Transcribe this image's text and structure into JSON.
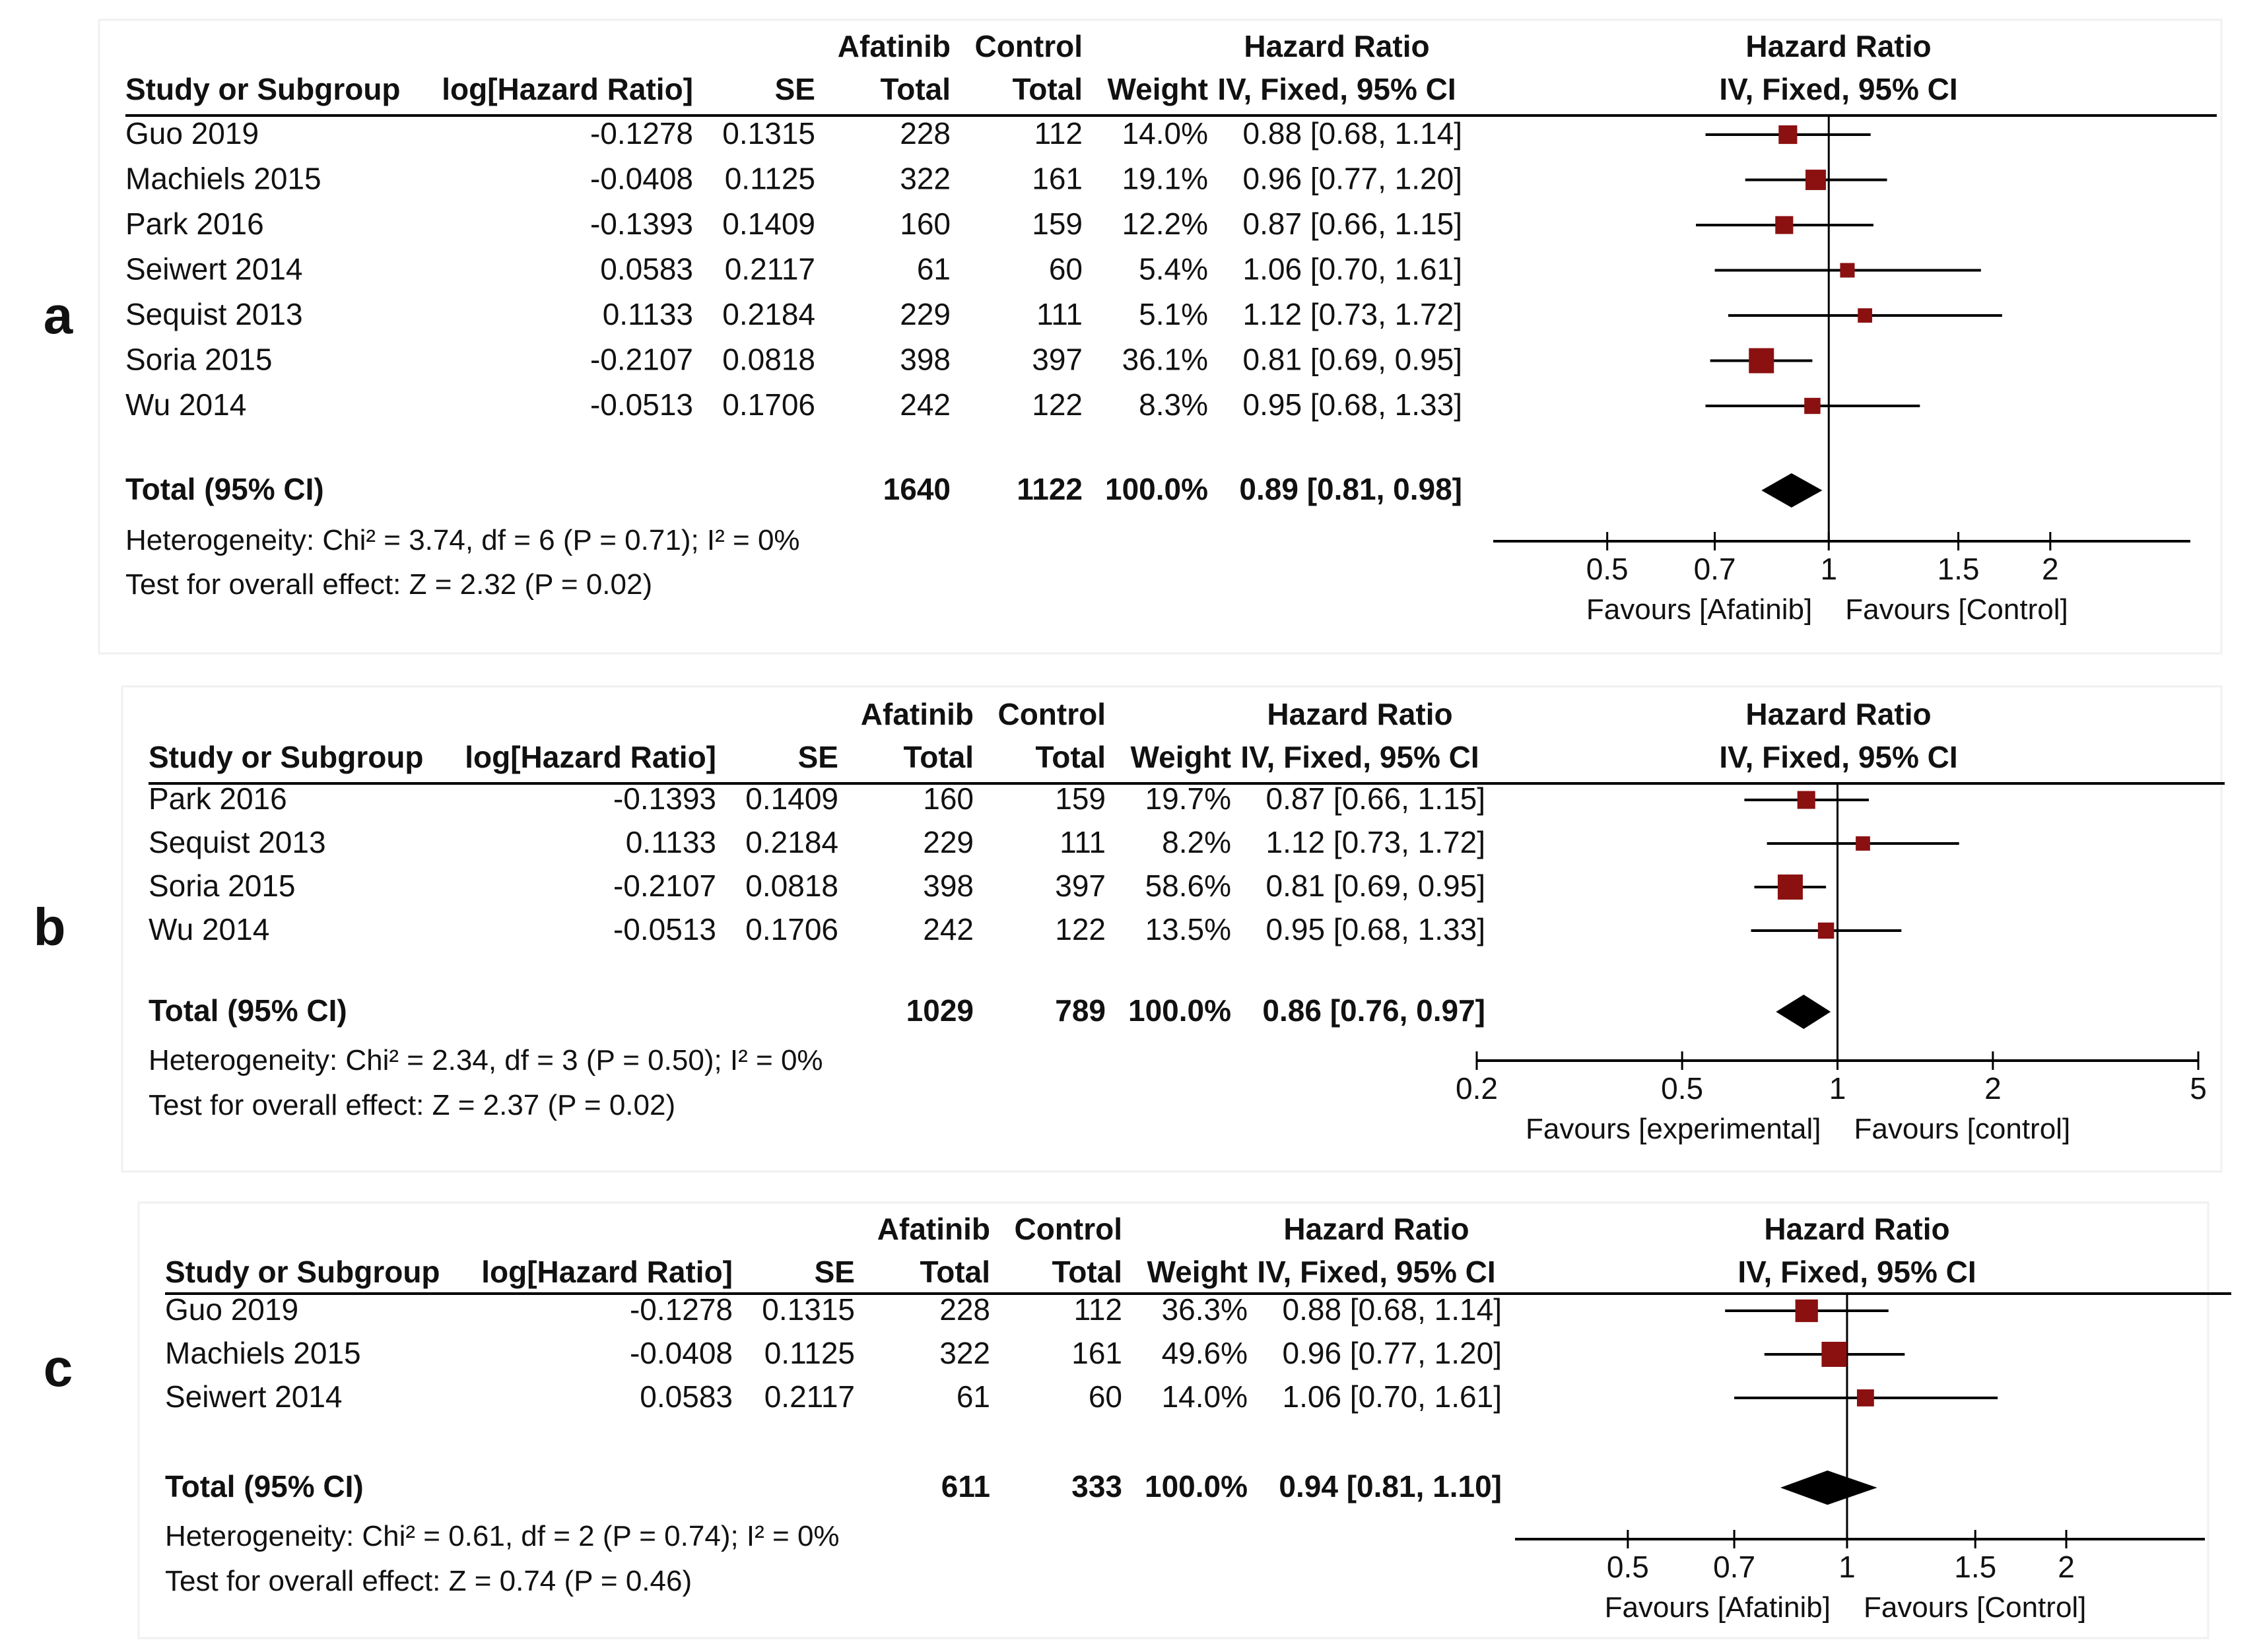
{
  "chart_data": [
    {
      "type": "forest",
      "panel_label": "a",
      "header": {
        "group1": "Afatinib",
        "group2": "Control",
        "col_study": "Study or Subgroup",
        "col_log": "log[Hazard Ratio]",
        "col_se": "SE",
        "col_total1": "Total",
        "col_total2": "Total",
        "col_weight": "Weight",
        "col_hr_title": "Hazard Ratio",
        "col_hr_method": "IV, Fixed, 95% CI",
        "plot_title": "Hazard Ratio",
        "plot_method": "IV, Fixed, 95% CI"
      },
      "studies": [
        {
          "name": "Guo 2019",
          "log_hr": "-0.1278",
          "se": "0.1315",
          "total1": "228",
          "total2": "112",
          "weight": "14.0%",
          "ci_text": "0.88 [0.68, 1.14]",
          "hr": 0.88,
          "lo": 0.68,
          "hi": 1.14,
          "w": 14.0
        },
        {
          "name": "Machiels 2015",
          "log_hr": "-0.0408",
          "se": "0.1125",
          "total1": "322",
          "total2": "161",
          "weight": "19.1%",
          "ci_text": "0.96 [0.77, 1.20]",
          "hr": 0.96,
          "lo": 0.77,
          "hi": 1.2,
          "w": 19.1
        },
        {
          "name": "Park 2016",
          "log_hr": "-0.1393",
          "se": "0.1409",
          "total1": "160",
          "total2": "159",
          "weight": "12.2%",
          "ci_text": "0.87 [0.66, 1.15]",
          "hr": 0.87,
          "lo": 0.66,
          "hi": 1.15,
          "w": 12.2
        },
        {
          "name": "Seiwert 2014",
          "log_hr": "0.0583",
          "se": "0.2117",
          "total1": "61",
          "total2": "60",
          "weight": "5.4%",
          "ci_text": "1.06 [0.70, 1.61]",
          "hr": 1.06,
          "lo": 0.7,
          "hi": 1.61,
          "w": 5.4
        },
        {
          "name": "Sequist 2013",
          "log_hr": "0.1133",
          "se": "0.2184",
          "total1": "229",
          "total2": "111",
          "weight": "5.1%",
          "ci_text": "1.12 [0.73, 1.72]",
          "hr": 1.12,
          "lo": 0.73,
          "hi": 1.72,
          "w": 5.1
        },
        {
          "name": "Soria 2015",
          "log_hr": "-0.2107",
          "se": "0.0818",
          "total1": "398",
          "total2": "397",
          "weight": "36.1%",
          "ci_text": "0.81 [0.69, 0.95]",
          "hr": 0.81,
          "lo": 0.69,
          "hi": 0.95,
          "w": 36.1
        },
        {
          "name": "Wu 2014",
          "log_hr": "-0.0513",
          "se": "0.1706",
          "total1": "242",
          "total2": "122",
          "weight": "8.3%",
          "ci_text": "0.95 [0.68, 1.33]",
          "hr": 0.95,
          "lo": 0.68,
          "hi": 1.33,
          "w": 8.3
        }
      ],
      "total": {
        "label": "Total (95% CI)",
        "total1": "1640",
        "total2": "1122",
        "weight": "100.0%",
        "ci_text": "0.89 [0.81, 0.98]",
        "hr": 0.89,
        "lo": 0.81,
        "hi": 0.98
      },
      "heterogeneity": "Heterogeneity: Chi² = 3.74, df = 6 (P = 0.71); I² = 0%",
      "overall_effect": "Test for overall effect: Z = 2.32 (P = 0.02)",
      "axis": {
        "scale": "log",
        "range": [
          0.35,
          3.1
        ],
        "ticks": [
          0.5,
          0.7,
          1,
          1.5,
          2
        ],
        "tick_labels": [
          "0.5",
          "0.7",
          "1",
          "1.5",
          "2"
        ]
      },
      "favours_left": "Favours [Afatinib]",
      "favours_right": "Favours [Control]"
    },
    {
      "type": "forest",
      "panel_label": "b",
      "header": {
        "group1": "Afatinib",
        "group2": "Control",
        "col_study": "Study or Subgroup",
        "col_log": "log[Hazard Ratio]",
        "col_se": "SE",
        "col_total1": "Total",
        "col_total2": "Total",
        "col_weight": "Weight",
        "col_hr_title": "Hazard Ratio",
        "col_hr_method": "IV, Fixed, 95% CI",
        "plot_title": "Hazard Ratio",
        "plot_method": "IV, Fixed, 95% CI"
      },
      "studies": [
        {
          "name": "Park 2016",
          "log_hr": "-0.1393",
          "se": "0.1409",
          "total1": "160",
          "total2": "159",
          "weight": "19.7%",
          "ci_text": "0.87 [0.66, 1.15]",
          "hr": 0.87,
          "lo": 0.66,
          "hi": 1.15,
          "w": 19.7
        },
        {
          "name": "Sequist 2013",
          "log_hr": "0.1133",
          "se": "0.2184",
          "total1": "229",
          "total2": "111",
          "weight": "8.2%",
          "ci_text": "1.12 [0.73, 1.72]",
          "hr": 1.12,
          "lo": 0.73,
          "hi": 1.72,
          "w": 8.2
        },
        {
          "name": "Soria 2015",
          "log_hr": "-0.2107",
          "se": "0.0818",
          "total1": "398",
          "total2": "397",
          "weight": "58.6%",
          "ci_text": "0.81 [0.69, 0.95]",
          "hr": 0.81,
          "lo": 0.69,
          "hi": 0.95,
          "w": 58.6
        },
        {
          "name": "Wu 2014",
          "log_hr": "-0.0513",
          "se": "0.1706",
          "total1": "242",
          "total2": "122",
          "weight": "13.5%",
          "ci_text": "0.95 [0.68, 1.33]",
          "hr": 0.95,
          "lo": 0.68,
          "hi": 1.33,
          "w": 13.5
        }
      ],
      "total": {
        "label": "Total (95% CI)",
        "total1": "1029",
        "total2": "789",
        "weight": "100.0%",
        "ci_text": "0.86 [0.76, 0.97]",
        "hr": 0.86,
        "lo": 0.76,
        "hi": 0.97
      },
      "heterogeneity": "Heterogeneity: Chi² = 2.34, df = 3 (P = 0.50); I² = 0%",
      "overall_effect": "Test for overall effect: Z = 2.37 (P = 0.02)",
      "axis": {
        "scale": "log",
        "range": [
          0.2,
          5
        ],
        "ticks": [
          0.2,
          0.5,
          1,
          2,
          5
        ],
        "tick_labels": [
          "0.2",
          "0.5",
          "1",
          "2",
          "5"
        ]
      },
      "favours_left": "Favours [experimental]",
      "favours_right": "Favours [control]"
    },
    {
      "type": "forest",
      "panel_label": "c",
      "header": {
        "group1": "Afatinib",
        "group2": "Control",
        "col_study": "Study or Subgroup",
        "col_log": "log[Hazard Ratio]",
        "col_se": "SE",
        "col_total1": "Total",
        "col_total2": "Total",
        "col_weight": "Weight",
        "col_hr_title": "Hazard Ratio",
        "col_hr_method": "IV, Fixed, 95% CI",
        "plot_title": "Hazard Ratio",
        "plot_method": "IV, Fixed, 95% CI"
      },
      "studies": [
        {
          "name": "Guo 2019",
          "log_hr": "-0.1278",
          "se": "0.1315",
          "total1": "228",
          "total2": "112",
          "weight": "36.3%",
          "ci_text": "0.88 [0.68, 1.14]",
          "hr": 0.88,
          "lo": 0.68,
          "hi": 1.14,
          "w": 36.3
        },
        {
          "name": "Machiels 2015",
          "log_hr": "-0.0408",
          "se": "0.1125",
          "total1": "322",
          "total2": "161",
          "weight": "49.6%",
          "ci_text": "0.96 [0.77, 1.20]",
          "hr": 0.96,
          "lo": 0.77,
          "hi": 1.2,
          "w": 49.6
        },
        {
          "name": "Seiwert 2014",
          "log_hr": "0.0583",
          "se": "0.2117",
          "total1": "61",
          "total2": "60",
          "weight": "14.0%",
          "ci_text": "1.06 [0.70, 1.61]",
          "hr": 1.06,
          "lo": 0.7,
          "hi": 1.61,
          "w": 14.0
        }
      ],
      "total": {
        "label": "Total (95% CI)",
        "total1": "611",
        "total2": "333",
        "weight": "100.0%",
        "ci_text": "0.94 [0.81, 1.10]",
        "hr": 0.94,
        "lo": 0.81,
        "hi": 1.1
      },
      "heterogeneity": "Heterogeneity: Chi² = 0.61, df = 2 (P = 0.74); I² = 0%",
      "overall_effect": "Test for overall effect: Z = 0.74 (P = 0.46)",
      "axis": {
        "scale": "log",
        "range": [
          0.35,
          3.1
        ],
        "ticks": [
          0.5,
          0.7,
          1,
          1.5,
          2
        ],
        "tick_labels": [
          "0.5",
          "0.7",
          "1",
          "1.5",
          "2"
        ]
      },
      "favours_left": "Favours [Afatinib]",
      "favours_right": "Favours [Control]"
    }
  ],
  "colors": {
    "marker": "#8b1010",
    "diamond": "#000000",
    "line": "#000000"
  }
}
